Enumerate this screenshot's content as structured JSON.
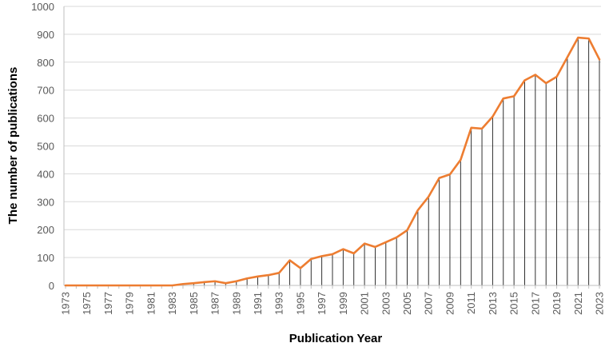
{
  "colors": {
    "line": "#ED7D31",
    "drop": "#1a1a1a",
    "grid": "#d9d9d9",
    "axis": "#bfbfbf"
  },
  "chart_data": {
    "type": "line",
    "title": "",
    "xlabel": "Publication Year",
    "ylabel": "The number of publications",
    "ylim": [
      0,
      1000
    ],
    "yticks": [
      0,
      100,
      200,
      300,
      400,
      500,
      600,
      700,
      800,
      900,
      1000
    ],
    "yticklabels": [
      "0",
      "100",
      "200",
      "300",
      "400",
      "500",
      "600",
      "700",
      "800",
      "900",
      "1000"
    ],
    "xticklabels": [
      "1973",
      "1975",
      "1977",
      "1979",
      "1981",
      "1983",
      "1985",
      "1987",
      "1989",
      "1991",
      "1993",
      "1995",
      "1997",
      "1999",
      "2001",
      "2003",
      "2005",
      "2007",
      "2009",
      "2011",
      "2013",
      "2015",
      "2017",
      "2019",
      "2021",
      "2023"
    ],
    "grid": "horizontal",
    "legend": "none",
    "drop_lines": true,
    "x": [
      1973,
      1974,
      1975,
      1976,
      1977,
      1978,
      1979,
      1980,
      1981,
      1982,
      1983,
      1984,
      1985,
      1986,
      1987,
      1988,
      1989,
      1990,
      1991,
      1992,
      1993,
      1994,
      1995,
      1996,
      1997,
      1998,
      1999,
      2000,
      2001,
      2002,
      2003,
      2004,
      2005,
      2006,
      2007,
      2008,
      2009,
      2010,
      2011,
      2012,
      2013,
      2014,
      2015,
      2016,
      2017,
      2018,
      2019,
      2020,
      2021,
      2022,
      2023
    ],
    "series": [
      {
        "values": [
          0,
          0,
          0,
          0,
          0,
          0,
          0,
          0,
          0,
          0,
          0,
          5,
          8,
          12,
          15,
          8,
          15,
          25,
          32,
          37,
          45,
          90,
          62,
          95,
          105,
          112,
          130,
          115,
          150,
          138,
          155,
          172,
          198,
          270,
          318,
          385,
          398,
          450,
          565,
          562,
          605,
          670,
          678,
          735,
          755,
          725,
          748,
          818,
          888,
          885,
          810
        ]
      }
    ]
  }
}
